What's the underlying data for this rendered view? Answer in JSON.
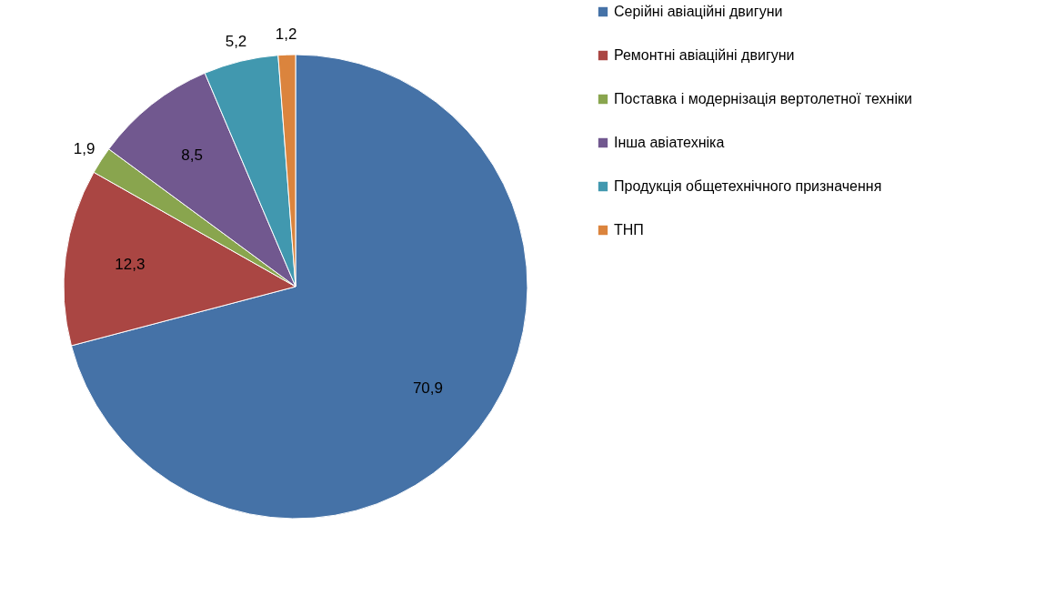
{
  "chart_data": {
    "type": "pie",
    "categories": [
      "Серійні авіаційні двигуни",
      "Ремонтні авіаційні двигуни",
      "Поставка і модернізація вертолетної техніки",
      "Інша авіатехніка",
      "Продукція общетехнічного призначення",
      "ТНП"
    ],
    "values": [
      70.9,
      12.3,
      1.9,
      8.5,
      5.2,
      1.2
    ],
    "colors": [
      "#4572a7",
      "#aa4643",
      "#89a54e",
      "#71588f",
      "#4198af",
      "#db843d"
    ],
    "data_labels": true,
    "value_labels": [
      "70,9",
      "12,3",
      "1,9",
      "8,5",
      "5,2",
      "1,2"
    ],
    "legend": "right"
  }
}
